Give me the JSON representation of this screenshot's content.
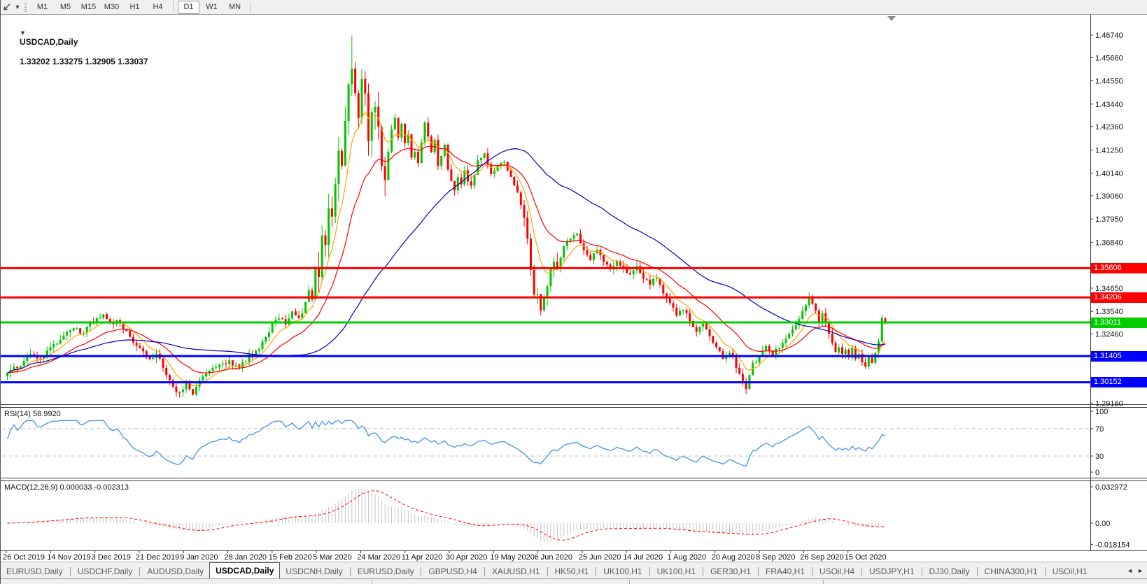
{
  "toolbar": {
    "timeframes": [
      "M1",
      "M5",
      "M15",
      "M30",
      "H1",
      "H4",
      "D1",
      "W1",
      "MN"
    ],
    "active_timeframe": "D1"
  },
  "chart": {
    "title": "USDCAD,Daily",
    "ohlc_line": "1.33202 1.33275 1.32905 1.33037"
  },
  "rsi": {
    "label": "RSI(14) 58.9920"
  },
  "macd": {
    "label": "MACD(12,26,9) 0.000033 -0.002313"
  },
  "colors": {
    "candle_up": "#00C400",
    "candle_down": "#FF0000",
    "ma_fast": "#FFA500",
    "ma_mid": "#FF0000",
    "ma_slow": "#0000BB",
    "rsi_line": "#4593E2",
    "rsi_level_dash": "#CCCCCC",
    "macd_hist": "#C4C4C4",
    "macd_signal": "#FF0000",
    "axis_text": "#111111",
    "shift_marker": "#8a8a8a"
  },
  "chart_data": {
    "type": "candlestick",
    "symbol": "USDCAD",
    "timeframe": "Daily",
    "bars": 266,
    "current_bar": {
      "open": 1.33202,
      "high": 1.33275,
      "low": 1.32905,
      "close": 1.33037
    },
    "peak_high": 1.4669,
    "peak_bar": 104,
    "close_anchors": [
      [
        0,
        1.306
      ],
      [
        4,
        1.31
      ],
      [
        7,
        1.316
      ],
      [
        9,
        1.3125
      ],
      [
        13,
        1.318
      ],
      [
        17,
        1.324
      ],
      [
        20,
        1.327
      ],
      [
        23,
        1.3255
      ],
      [
        26,
        1.331
      ],
      [
        29,
        1.333
      ],
      [
        31,
        1.329
      ],
      [
        33,
        1.3315
      ],
      [
        36,
        1.326
      ],
      [
        40,
        1.317
      ],
      [
        43,
        1.313
      ],
      [
        45,
        1.3155
      ],
      [
        47,
        1.3085
      ],
      [
        50,
        1.299
      ],
      [
        52,
        1.2965
      ],
      [
        54,
        1.3015
      ],
      [
        56,
        1.296
      ],
      [
        58,
        1.3035
      ],
      [
        61,
        1.307
      ],
      [
        64,
        1.3095
      ],
      [
        67,
        1.311
      ],
      [
        70,
        1.3085
      ],
      [
        73,
        1.314
      ],
      [
        76,
        1.3185
      ],
      [
        78,
        1.323
      ],
      [
        80,
        1.329
      ],
      [
        82,
        1.333
      ],
      [
        84,
        1.33
      ],
      [
        86,
        1.335
      ],
      [
        88,
        1.332
      ],
      [
        90,
        1.339
      ],
      [
        91,
        1.345
      ],
      [
        92,
        1.34
      ],
      [
        93,
        1.356
      ],
      [
        94,
        1.35
      ],
      [
        95,
        1.37
      ],
      [
        96,
        1.366
      ],
      [
        97,
        1.382
      ],
      [
        98,
        1.378
      ],
      [
        99,
        1.398
      ],
      [
        100,
        1.412
      ],
      [
        101,
        1.408
      ],
      [
        102,
        1.428
      ],
      [
        103,
        1.442
      ],
      [
        104,
        1.451
      ],
      [
        105,
        1.443
      ],
      [
        106,
        1.428
      ],
      [
        107,
        1.446
      ],
      [
        108,
        1.438
      ],
      [
        109,
        1.418
      ],
      [
        110,
        1.428
      ],
      [
        111,
        1.435
      ],
      [
        112,
        1.425
      ],
      [
        113,
        1.405
      ],
      [
        114,
        1.399
      ],
      [
        115,
        1.412
      ],
      [
        116,
        1.422
      ],
      [
        117,
        1.428
      ],
      [
        118,
        1.419
      ],
      [
        119,
        1.424
      ],
      [
        120,
        1.415
      ],
      [
        121,
        1.419
      ],
      [
        122,
        1.408
      ],
      [
        123,
        1.412
      ],
      [
        124,
        1.406
      ],
      [
        125,
        1.416
      ],
      [
        126,
        1.4265
      ],
      [
        127,
        1.42
      ],
      [
        128,
        1.412
      ],
      [
        129,
        1.418
      ],
      [
        130,
        1.406
      ],
      [
        131,
        1.41
      ],
      [
        132,
        1.414
      ],
      [
        133,
        1.403
      ],
      [
        134,
        1.398
      ],
      [
        135,
        1.394
      ],
      [
        136,
        1.4
      ],
      [
        137,
        1.395
      ],
      [
        138,
        1.402
      ],
      [
        140,
        1.395
      ],
      [
        142,
        1.407
      ],
      [
        144,
        1.41
      ],
      [
        146,
        1.401
      ],
      [
        148,
        1.406
      ],
      [
        150,
        1.406
      ],
      [
        152,
        1.399
      ],
      [
        154,
        1.393
      ],
      [
        156,
        1.379
      ],
      [
        157,
        1.369
      ],
      [
        158,
        1.356
      ],
      [
        159,
        1.345
      ],
      [
        160,
        1.342
      ],
      [
        161,
        1.336
      ],
      [
        162,
        1.342
      ],
      [
        163,
        1.348
      ],
      [
        164,
        1.355
      ],
      [
        165,
        1.36
      ],
      [
        166,
        1.356
      ],
      [
        167,
        1.362
      ],
      [
        168,
        1.366
      ],
      [
        170,
        1.37
      ],
      [
        172,
        1.3715
      ],
      [
        174,
        1.365
      ],
      [
        176,
        1.36
      ],
      [
        178,
        1.365
      ],
      [
        180,
        1.359
      ],
      [
        182,
        1.355
      ],
      [
        184,
        1.36
      ],
      [
        186,
        1.356
      ],
      [
        188,
        1.353
      ],
      [
        190,
        1.357
      ],
      [
        192,
        1.352
      ],
      [
        194,
        1.348
      ],
      [
        196,
        1.352
      ],
      [
        198,
        1.345
      ],
      [
        200,
        1.339
      ],
      [
        202,
        1.334
      ],
      [
        204,
        1.337
      ],
      [
        206,
        1.331
      ],
      [
        208,
        1.326
      ],
      [
        210,
        1.33
      ],
      [
        212,
        1.323
      ],
      [
        214,
        1.3185
      ],
      [
        216,
        1.313
      ],
      [
        218,
        1.316
      ],
      [
        220,
        1.309
      ],
      [
        222,
        1.301
      ],
      [
        223,
        1.2995
      ],
      [
        224,
        1.306
      ],
      [
        225,
        1.31
      ],
      [
        227,
        1.314
      ],
      [
        229,
        1.318
      ],
      [
        231,
        1.315
      ],
      [
        233,
        1.319
      ],
      [
        235,
        1.323
      ],
      [
        237,
        1.327
      ],
      [
        239,
        1.332
      ],
      [
        241,
        1.338
      ],
      [
        242,
        1.3415
      ],
      [
        243,
        1.339
      ],
      [
        244,
        1.335
      ],
      [
        245,
        1.331
      ],
      [
        246,
        1.334
      ],
      [
        247,
        1.329
      ],
      [
        248,
        1.325
      ],
      [
        249,
        1.321
      ],
      [
        250,
        1.316
      ],
      [
        251,
        1.319
      ],
      [
        252,
        1.315
      ],
      [
        253,
        1.318
      ],
      [
        254,
        1.314
      ],
      [
        255,
        1.317
      ],
      [
        256,
        1.312
      ],
      [
        257,
        1.315
      ],
      [
        258,
        1.311
      ],
      [
        259,
        1.3085
      ],
      [
        260,
        1.313
      ],
      [
        261,
        1.311
      ],
      [
        262,
        1.316
      ],
      [
        263,
        1.321
      ],
      [
        264,
        1.333
      ],
      [
        265,
        1.3304
      ]
    ],
    "moving_averages": [
      {
        "period": 8,
        "type": "ema",
        "color": "#FFA500"
      },
      {
        "period": 21,
        "type": "ema",
        "color": "#FF0000"
      },
      {
        "period": 55,
        "type": "sma",
        "color": "#0000BB"
      }
    ],
    "hlines": [
      {
        "price": 1.35606,
        "label": "1.35606",
        "color": "#FF0000"
      },
      {
        "price": 1.34206,
        "label": "1.34206",
        "color": "#FF0000"
      },
      {
        "price": 1.33011,
        "label": "1.33011",
        "color": "#00CC00"
      },
      {
        "price": 1.31405,
        "label": "1.31405",
        "color": "#0000FF"
      },
      {
        "price": 1.30152,
        "label": "1.30152",
        "color": "#0000FF"
      }
    ],
    "y_axis_ticks": [
      "1.46740",
      "1.45660",
      "1.44550",
      "1.43440",
      "1.42360",
      "1.41250",
      "1.40140",
      "1.39060",
      "1.37950",
      "1.36840",
      "1.34650",
      "1.33540",
      "1.32460",
      "1.29160"
    ],
    "rsi": {
      "period": 14,
      "value": 58.992,
      "axis_labels": [
        "100",
        "70",
        "30",
        "0"
      ],
      "levels": [
        70,
        30
      ],
      "range": [
        0,
        100
      ]
    },
    "macd": {
      "fast": 12,
      "slow": 26,
      "signal": 9,
      "values": [
        3.3e-05,
        -0.002313
      ],
      "axis_labels": [
        [
          "0.032972",
          0.032972
        ],
        [
          "0.00",
          0
        ],
        [
          "-0.018154",
          -0.018154
        ]
      ]
    },
    "x_axis_dates": [
      "26 Oct 2019",
      "14 Nov 2019",
      "3 Dec 2019",
      "21 Dec 2019",
      "9 Jan 2020",
      "28 Jan 2020",
      "15 Feb 2020",
      "5 Mar 2020",
      "24 Mar 2020",
      "11 Apr 2020",
      "30 Apr 2020",
      "19 May 2020",
      "6 Jun 2020",
      "25 Jun 2020",
      "14 Jul 2020",
      "1 Aug 2020",
      "20 Aug 2020",
      "8 Sep 2020",
      "26 Sep 2020",
      "15 Oct 2020"
    ]
  },
  "tabs": {
    "items": [
      "EURUSD,Daily",
      "USDCHF,Daily",
      "AUDUSD,Daily",
      "USDCAD,Daily",
      "USDCNH,Daily",
      "EURUSD,Daily",
      "GBPUSD,H4",
      "XAUUSD,H1",
      "HK50,H1",
      "UK100,H1",
      "UK100,H1",
      "GER30,H1",
      "FRA40,H1",
      "USOil,H4",
      "USDJPY,H1",
      "DJ30,Daily",
      "CHINA300,H1",
      "USOil,H1"
    ],
    "active_index": 3,
    "left_arrow": "◄",
    "right_arrow": "►"
  }
}
